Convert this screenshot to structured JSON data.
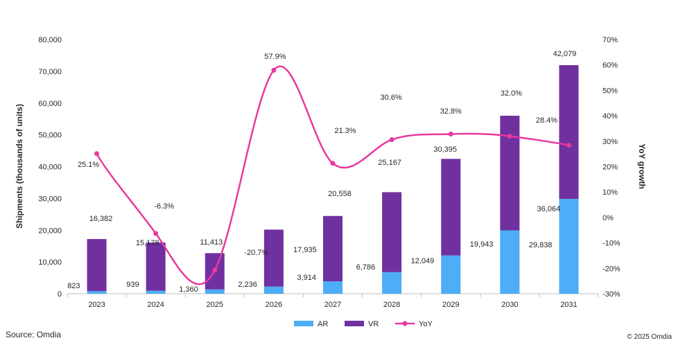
{
  "chart_data": {
    "type": "bar",
    "stacked": true,
    "categories": [
      "2023",
      "2024",
      "2025",
      "2026",
      "2027",
      "2028",
      "2029",
      "2030",
      "2031"
    ],
    "series": [
      {
        "name": "AR",
        "type": "bar",
        "axis": "left",
        "color": "#4DADF7",
        "values": [
          823,
          939,
          1360,
          2236,
          3914,
          6786,
          12049,
          19943,
          29838
        ],
        "labels": [
          "823",
          "939",
          "1,360",
          "2,236",
          "3,914",
          "6,786",
          "12,049",
          "19,943",
          "29,838"
        ]
      },
      {
        "name": "VR",
        "type": "bar",
        "axis": "left",
        "color": "#7030A0",
        "values": [
          16382,
          15178,
          11413,
          17935,
          20558,
          25167,
          30395,
          36064,
          42079
        ],
        "labels": [
          "16,382",
          "15,178",
          "11,413",
          "17,935",
          "20,558",
          "25,167",
          "30,395",
          "36,064",
          "42,079"
        ]
      },
      {
        "name": "YoY",
        "type": "line",
        "axis": "right",
        "color": "#E8399E",
        "values": [
          25.1,
          -6.3,
          -20.7,
          57.9,
          21.3,
          30.6,
          32.8,
          32.0,
          28.4
        ],
        "labels": [
          "25.1%",
          "-6.3%",
          "-20.7%",
          "57.9%",
          "21.3%",
          "30.6%",
          "32.8%",
          "32.0%",
          "28.4%"
        ]
      }
    ],
    "ylabel": "Shipments (thousands of units)",
    "y2label": "YoY growth",
    "ylim": [
      0,
      80000
    ],
    "y2lim": [
      -30,
      70
    ],
    "yticks": [
      "0",
      "10,000",
      "20,000",
      "30,000",
      "40,000",
      "50,000",
      "60,000",
      "70,000",
      "80,000"
    ],
    "y2ticks": [
      "-30%",
      "-20%",
      "-10%",
      "0%",
      "10%",
      "20%",
      "30%",
      "40%",
      "50%",
      "60%",
      "70%"
    ],
    "grid": false,
    "legend_position": "bottom"
  },
  "footer": {
    "source": "Source: Omdia",
    "copyright": "© 2025 Omdia"
  }
}
